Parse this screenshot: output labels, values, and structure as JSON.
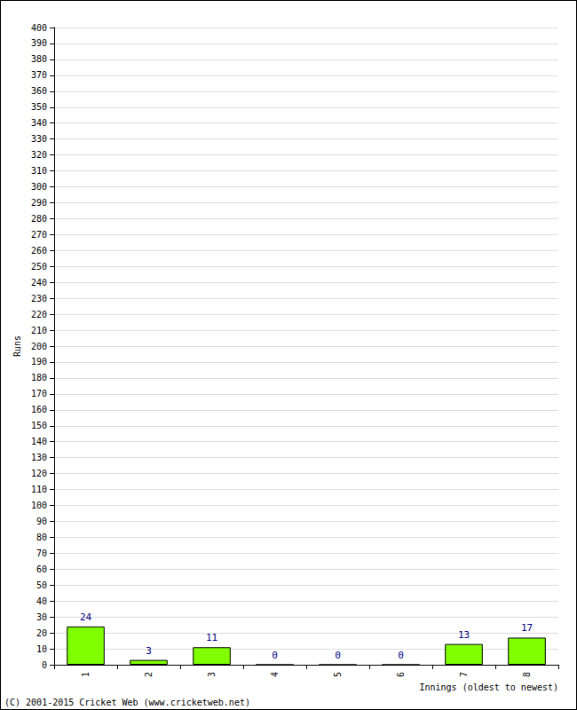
{
  "chart_data": {
    "type": "bar",
    "x_label": "Innings (oldest to newest)",
    "y_label": "Runs",
    "annotations": [
      "(C) 2001-2015 Cricket Web (www.cricketweb.net)"
    ],
    "categories": [
      "1",
      "2",
      "3",
      "4",
      "5",
      "6",
      "7",
      "8"
    ],
    "values": [
      24,
      3,
      11,
      0,
      0,
      0,
      13,
      17
    ],
    "color": "#80ff00",
    "ylim": [
      0,
      400
    ],
    "yticks": [
      0,
      10,
      20,
      30,
      40,
      50,
      60,
      70,
      80,
      90,
      100,
      110,
      120,
      130,
      140,
      150,
      160,
      170,
      180,
      190,
      200,
      210,
      220,
      230,
      240,
      250,
      260,
      270,
      280,
      290,
      300,
      310,
      320,
      330,
      340,
      350,
      360,
      370,
      380,
      390,
      400
    ],
    "grid": true,
    "data_labels": true
  }
}
